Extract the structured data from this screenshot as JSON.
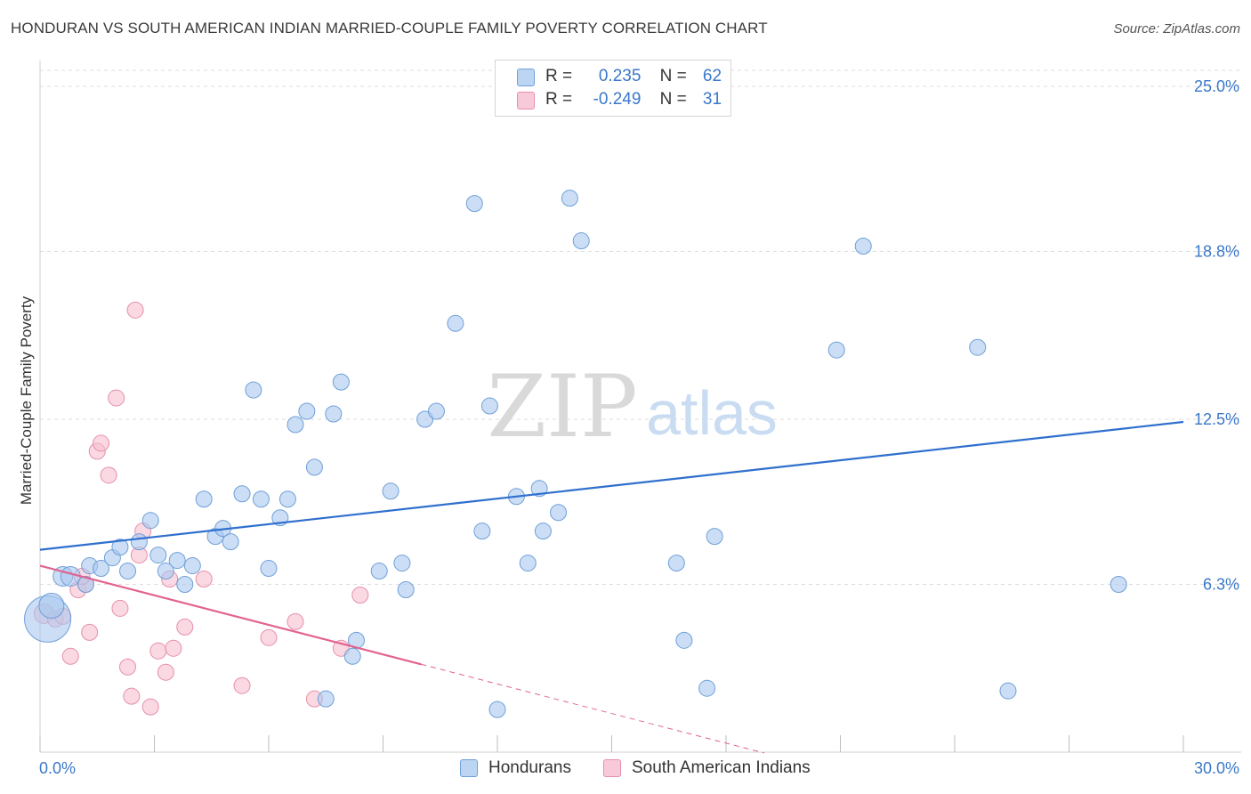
{
  "title": "HONDURAN VS SOUTH AMERICAN INDIAN MARRIED-COUPLE FAMILY POVERTY CORRELATION CHART",
  "source": "Source: ZipAtlas.com",
  "watermark": {
    "zip": "ZIP",
    "atlas": "atlas"
  },
  "legend_top": {
    "rows": [
      {
        "r_label": "R =",
        "r_value": "0.235",
        "n_label": "N =",
        "n_value": "62"
      },
      {
        "r_label": "R =",
        "r_value": "-0.249",
        "n_label": "N =",
        "n_value": "31"
      }
    ]
  },
  "chart_data": {
    "type": "scatter",
    "title": "HONDURAN VS SOUTH AMERICAN INDIAN MARRIED-COUPLE FAMILY POVERTY CORRELATION CHART",
    "xlabel": "",
    "ylabel": "Married-Couple Family Poverty",
    "xlim": [
      0,
      30
    ],
    "ylim": [
      0,
      25
    ],
    "x_tick_labels": [
      "0.0%",
      "30.0%"
    ],
    "y_ticks": [
      6.3,
      12.5,
      18.8,
      25.0
    ],
    "y_tick_labels": [
      "6.3%",
      "12.5%",
      "18.8%",
      "25.0%"
    ],
    "grid": true,
    "legend_position": "bottom",
    "colors": {
      "hondurans_fill": "#a9c8ef",
      "hondurans_stroke": "#6f9fd8",
      "hondurans_line": "#2f6fce",
      "sai_fill": "#f6bfd0",
      "sai_stroke": "#e78fab",
      "sai_line": "#e2638e",
      "axis_text": "#3a78c9",
      "grid": "#dddddd"
    },
    "series": [
      {
        "name": "Hondurans",
        "r": 0.235,
        "n": 62,
        "trend": {
          "x0": 0,
          "y0": 7.6,
          "x1": 30,
          "y1": 12.4
        },
        "points": [
          [
            0.2,
            5.0,
            26
          ],
          [
            0.3,
            5.5,
            14
          ],
          [
            0.6,
            6.6,
            11
          ],
          [
            0.8,
            6.6,
            11
          ],
          [
            1.2,
            6.3,
            9
          ],
          [
            1.3,
            7.0,
            9
          ],
          [
            1.6,
            6.9,
            9
          ],
          [
            1.9,
            7.3,
            9
          ],
          [
            2.1,
            7.7,
            9
          ],
          [
            2.3,
            6.8,
            9
          ],
          [
            2.6,
            7.9,
            9
          ],
          [
            2.9,
            8.7,
            9
          ],
          [
            3.1,
            7.4,
            9
          ],
          [
            3.3,
            6.8,
            9
          ],
          [
            3.6,
            7.2,
            9
          ],
          [
            3.8,
            6.3,
            9
          ],
          [
            4.0,
            7.0,
            9
          ],
          [
            4.3,
            9.5,
            9
          ],
          [
            4.6,
            8.1,
            9
          ],
          [
            4.8,
            8.4,
            9
          ],
          [
            5.0,
            7.9,
            9
          ],
          [
            5.3,
            9.7,
            9
          ],
          [
            5.6,
            13.6,
            9
          ],
          [
            5.8,
            9.5,
            9
          ],
          [
            6.0,
            6.9,
            9
          ],
          [
            6.3,
            8.8,
            9
          ],
          [
            6.5,
            9.5,
            9
          ],
          [
            6.7,
            12.3,
            9
          ],
          [
            7.0,
            12.8,
            9
          ],
          [
            7.2,
            10.7,
            9
          ],
          [
            7.5,
            2.0,
            9
          ],
          [
            7.7,
            12.7,
            9
          ],
          [
            7.9,
            13.9,
            9
          ],
          [
            8.2,
            3.6,
            9
          ],
          [
            8.3,
            4.2,
            9
          ],
          [
            8.9,
            6.8,
            9
          ],
          [
            9.2,
            9.8,
            9
          ],
          [
            9.5,
            7.1,
            9
          ],
          [
            9.6,
            6.1,
            9
          ],
          [
            10.1,
            12.5,
            9
          ],
          [
            10.4,
            12.8,
            9
          ],
          [
            10.9,
            16.1,
            9
          ],
          [
            11.4,
            20.6,
            9
          ],
          [
            11.6,
            8.3,
            9
          ],
          [
            11.8,
            13.0,
            9
          ],
          [
            12.0,
            1.6,
            9
          ],
          [
            12.5,
            9.6,
            9
          ],
          [
            12.8,
            7.1,
            9
          ],
          [
            13.1,
            9.9,
            9
          ],
          [
            13.2,
            8.3,
            9
          ],
          [
            13.6,
            9.0,
            9
          ],
          [
            13.9,
            20.8,
            9
          ],
          [
            14.2,
            19.2,
            9
          ],
          [
            16.7,
            7.1,
            9
          ],
          [
            16.9,
            4.2,
            9
          ],
          [
            17.5,
            2.4,
            9
          ],
          [
            17.7,
            8.1,
            9
          ],
          [
            20.9,
            15.1,
            9
          ],
          [
            21.6,
            19.0,
            9
          ],
          [
            24.6,
            15.2,
            9
          ],
          [
            25.4,
            2.3,
            9
          ],
          [
            28.3,
            6.3,
            9
          ]
        ]
      },
      {
        "name": "South American Indians",
        "r": -0.249,
        "n": 31,
        "trend": {
          "x0": 0,
          "y0": 7.0,
          "x1": 10.0,
          "y1": 3.3,
          "dash_to_x": 19.0
        },
        "points": [
          [
            0.1,
            5.2,
            11
          ],
          [
            0.4,
            5.0,
            9
          ],
          [
            0.6,
            5.1,
            9
          ],
          [
            0.8,
            3.6,
            9
          ],
          [
            1.0,
            6.1,
            9
          ],
          [
            1.2,
            6.3,
            9
          ],
          [
            1.3,
            4.5,
            9
          ],
          [
            1.5,
            11.3,
            9
          ],
          [
            1.6,
            11.6,
            9
          ],
          [
            1.8,
            10.4,
            9
          ],
          [
            2.0,
            13.3,
            9
          ],
          [
            2.1,
            5.4,
            9
          ],
          [
            2.3,
            3.2,
            9
          ],
          [
            2.4,
            2.1,
            9
          ],
          [
            2.5,
            16.6,
            9
          ],
          [
            2.6,
            7.4,
            9
          ],
          [
            2.7,
            8.3,
            9
          ],
          [
            2.9,
            1.7,
            9
          ],
          [
            3.1,
            3.8,
            9
          ],
          [
            3.3,
            3.0,
            9
          ],
          [
            3.4,
            6.5,
            9
          ],
          [
            3.5,
            3.9,
            9
          ],
          [
            3.8,
            4.7,
            9
          ],
          [
            4.3,
            6.5,
            9
          ],
          [
            5.3,
            2.5,
            9
          ],
          [
            6.0,
            4.3,
            9
          ],
          [
            6.7,
            4.9,
            9
          ],
          [
            7.2,
            2.0,
            9
          ],
          [
            7.9,
            3.9,
            9
          ],
          [
            8.4,
            5.9,
            9
          ],
          [
            1.1,
            6.6,
            9
          ]
        ]
      }
    ]
  },
  "legend_bottom": [
    "Hondurans",
    "South American Indians"
  ]
}
